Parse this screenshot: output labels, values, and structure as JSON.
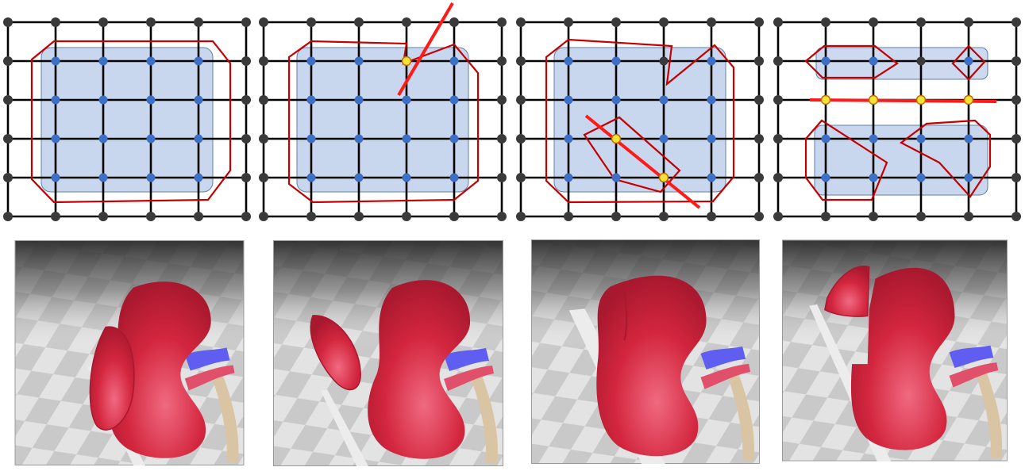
{
  "palette": {
    "grid_line": "#000000",
    "outer_node": "#3a3a3a",
    "inner_node": "#3d6fc4",
    "cut_node": "#f2e23a",
    "region_fill": "#c9d7ee",
    "region_stroke": "#5f7fa8",
    "boundary": "#c40000",
    "cut_line": "#ff1a1a",
    "organ": "#d3263e",
    "organ_dark": "#a8182e",
    "vein": "#5f5ef0",
    "artery": "#e0506a",
    "ureter": "#d9c4a3",
    "blade": "#ececec",
    "floor_dark": "#6e6e6e",
    "floor_light": "#c9c9c9"
  },
  "grid_panels": [
    {
      "id": "grid-panel-intact",
      "cut_count": 0,
      "cut_nodes": 0
    },
    {
      "id": "grid-panel-partial-cut",
      "cut_count": 1,
      "cut_nodes": 1
    },
    {
      "id": "grid-panel-diagonal-cut",
      "cut_count": 2,
      "cut_nodes": 2
    },
    {
      "id": "grid-panel-separated",
      "cut_count": 1,
      "cut_nodes": 4
    }
  ],
  "render_panels": [
    {
      "id": "render-panel-1",
      "state": "blade-at-surface"
    },
    {
      "id": "render-panel-2",
      "state": "piece-detached"
    },
    {
      "id": "render-panel-3",
      "state": "blade-inserted"
    },
    {
      "id": "render-panel-4",
      "state": "piece-removed"
    }
  ]
}
